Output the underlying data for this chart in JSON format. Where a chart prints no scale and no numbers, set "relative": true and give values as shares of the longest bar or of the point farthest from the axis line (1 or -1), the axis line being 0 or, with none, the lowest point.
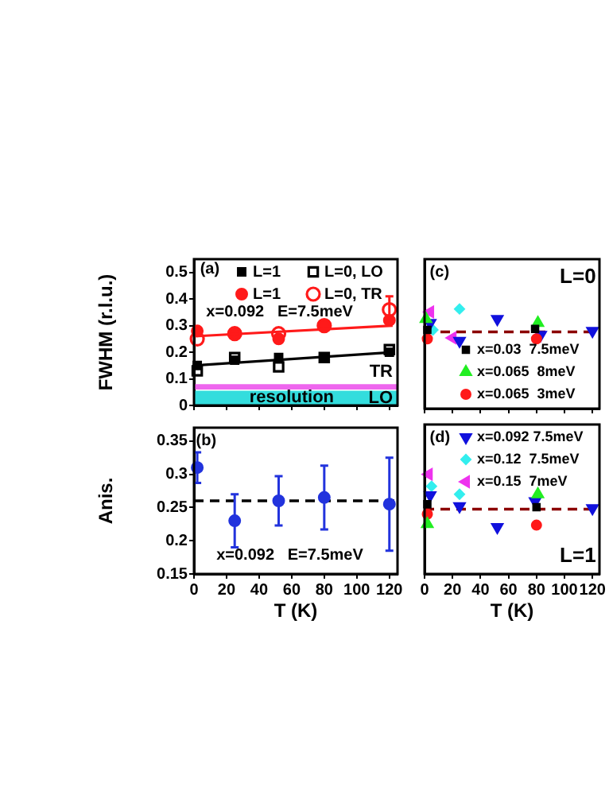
{
  "chart_data": [
    {
      "type": "scatter",
      "ylabel": "FWHM (r.l.u.)",
      "x": [
        2,
        25,
        52,
        80,
        120
      ],
      "xlim": [
        0,
        125
      ],
      "xticks": [
        0,
        20,
        40,
        60,
        80,
        100,
        120
      ],
      "ylim": [
        0,
        0.55
      ],
      "yticks": [
        0,
        0.1,
        0.2,
        0.3,
        0.4,
        0.5
      ],
      "tick_labels": "y",
      "legend": "top right",
      "series": [
        {
          "name": "L=1",
          "marker": "square",
          "color": "#000000",
          "values": [
            0.15,
            0.17,
            0.18,
            0.18,
            0.2
          ]
        },
        {
          "name": "L=0, LO",
          "marker": "square-open",
          "color": "#000000",
          "values": [
            0.13,
            0.18,
            0.145,
            0.18,
            0.21
          ]
        },
        {
          "name": "L=1",
          "marker": "circle",
          "color": "#ff1a1a",
          "values": [
            0.28,
            0.27,
            0.25,
            0.3,
            0.32
          ]
        },
        {
          "name": "L=0, TR",
          "marker": "circle-open",
          "color": "#ff1a1a",
          "values": [
            0.25,
            0.27,
            0.27,
            0.3,
            0.36
          ],
          "errors": [
            null,
            null,
            null,
            null,
            0.05
          ]
        },
        {
          "type": "line",
          "color": "#000000",
          "x": [
            0,
            122
          ],
          "values": [
            0.15,
            0.2
          ]
        },
        {
          "type": "line",
          "color": "#ff1a1a",
          "x": [
            0,
            122
          ],
          "values": [
            0.26,
            0.3
          ]
        }
      ],
      "bands": [
        {
          "axis": "y",
          "from": 0,
          "to": 0.055,
          "label": "LO",
          "color": "#33dddd"
        },
        {
          "axis": "y",
          "from": 0.06,
          "to": 0.08,
          "label": "TR",
          "color": "#ee66ee"
        }
      ],
      "annotations": [
        "(a)",
        "x=0.092   E=7.5meV",
        {
          "text": "resolution",
          "x": 60,
          "y": 0.03
        }
      ]
    },
    {
      "type": "scatter",
      "ylabel": "Anis.",
      "xlabel": "T (K)",
      "x": [
        2,
        25,
        52,
        80,
        120
      ],
      "xlim": [
        0,
        125
      ],
      "xticks": [
        0,
        20,
        40,
        60,
        80,
        100,
        120
      ],
      "ylim": [
        0.15,
        0.37
      ],
      "yticks": [
        0.15,
        0.2,
        0.25,
        0.3,
        0.35
      ],
      "series": [
        {
          "marker": "circle",
          "color": "#2233dd",
          "values": [
            0.31,
            0.23,
            0.26,
            0.265,
            0.255
          ],
          "errors": [
            0.023,
            0.04,
            0.037,
            0.048,
            0.07
          ]
        }
      ],
      "ref_lines": [
        {
          "axis": "y",
          "value": 0.26,
          "color": "#000000",
          "line_style": "dashed"
        }
      ],
      "annotations": [
        "(b)",
        "x=0.092   E=7.5meV"
      ]
    },
    {
      "type": "scatter",
      "relative": true,
      "xlim": [
        0,
        125
      ],
      "xticks": [
        0,
        20,
        40,
        60,
        80,
        100,
        120
      ],
      "tick_labels": false,
      "legend": "bottom right",
      "series": [
        {
          "name": "x=0.03  7.5meV",
          "marker": "square",
          "color": "#000000",
          "x": [
            2,
            79
          ],
          "values": [
            0.79,
            0.8
          ]
        },
        {
          "name": "x=0.065  8meV",
          "marker": "triangle",
          "color": "#22ee22",
          "x": [
            1,
            81
          ],
          "values": [
            0.9,
            0.86
          ]
        },
        {
          "name": "x=0.065  3meV",
          "marker": "circle",
          "color": "#ff1a1a",
          "x": [
            2,
            80
          ],
          "values": [
            0.7,
            0.7
          ]
        },
        {
          "marker": "triangle-down",
          "color": "#1111dd",
          "x": [
            4,
            25,
            52,
            83,
            120
          ],
          "values": [
            0.86,
            0.68,
            0.9,
            0.74,
            0.78
          ]
        },
        {
          "marker": "diamond",
          "color": "#33eeee",
          "x": [
            6,
            25
          ],
          "values": [
            0.79,
            1
          ]
        },
        {
          "marker": "triangle-left",
          "color": "#ee33ee",
          "x": [
            4,
            20
          ],
          "values": [
            0.97,
            0.71
          ]
        }
      ],
      "ref_lines": [
        {
          "axis": "y",
          "value": 0.77,
          "color": "#8b0000",
          "line_style": "dashed"
        }
      ],
      "annotations": [
        "(c)",
        "L=0"
      ]
    },
    {
      "type": "scatter",
      "relative": true,
      "xlabel": "T (K)",
      "xlim": [
        0,
        125
      ],
      "xticks": [
        0,
        20,
        40,
        60,
        80,
        100,
        120
      ],
      "tick_labels": "x",
      "legend": "top right",
      "series": [
        {
          "marker": "square",
          "color": "#000000",
          "x": [
            2,
            80
          ],
          "values": [
            0.7,
            0.67
          ]
        },
        {
          "marker": "triangle",
          "color": "#22ee22",
          "x": [
            2,
            81
          ],
          "values": [
            0.5,
            0.8
          ]
        },
        {
          "marker": "circle",
          "color": "#ff1a1a",
          "x": [
            2,
            80
          ],
          "values": [
            0.6,
            0.49
          ]
        },
        {
          "name": "x=0.092 7.5meV",
          "marker": "triangle-down",
          "color": "#1111dd",
          "x": [
            4,
            25,
            52,
            79,
            120
          ],
          "values": [
            0.79,
            0.68,
            0.47,
            0.73,
            0.66
          ]
        },
        {
          "name": "x=0.12  7.5meV",
          "marker": "diamond",
          "color": "#33eeee",
          "x": [
            5,
            25
          ],
          "values": [
            0.88,
            0.8
          ]
        },
        {
          "name": "x=0.15  7meV",
          "marker": "triangle-left",
          "color": "#ee33ee",
          "x": [
            3
          ],
          "values": [
            1
          ]
        }
      ],
      "ref_lines": [
        {
          "axis": "y",
          "value": 0.65,
          "color": "#8b0000",
          "line_style": "dashed"
        }
      ],
      "annotations": [
        "(d)",
        "L=1"
      ]
    }
  ]
}
